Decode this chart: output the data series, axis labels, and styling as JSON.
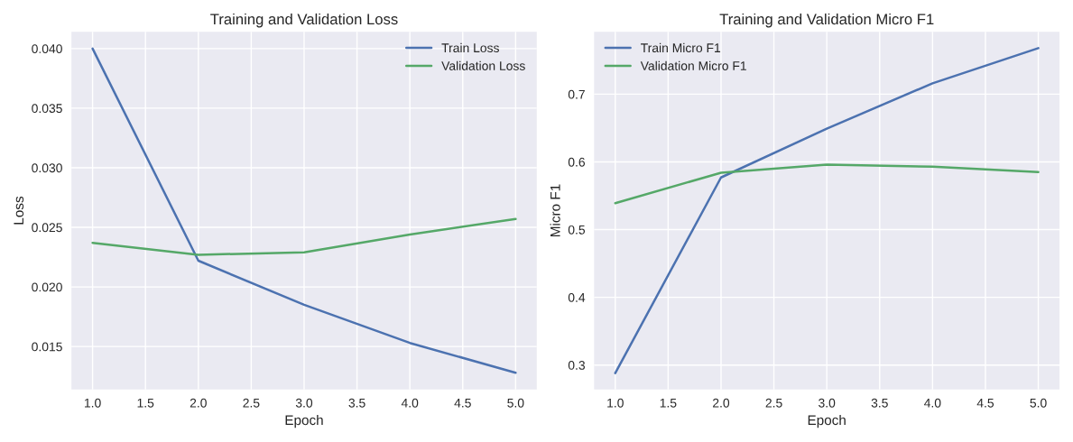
{
  "chart_data": [
    {
      "type": "line",
      "title": "Training and Validation Loss",
      "xlabel": "Epoch",
      "ylabel": "Loss",
      "x": [
        1,
        2,
        3,
        4,
        5
      ],
      "series": [
        {
          "name": "Train Loss",
          "color": "#4c72b0",
          "values": [
            0.04,
            0.0222,
            0.0185,
            0.0153,
            0.0128
          ]
        },
        {
          "name": "Validation Loss",
          "color": "#55a868",
          "values": [
            0.0237,
            0.0227,
            0.0229,
            0.0244,
            0.0257
          ]
        }
      ],
      "xlim": [
        0.8,
        5.2
      ],
      "ylim": [
        0.0114,
        0.0414
      ],
      "xticks": [
        {
          "value": 1,
          "label": "1.0"
        },
        {
          "value": 1.5,
          "label": "1.5"
        },
        {
          "value": 2,
          "label": "2.0"
        },
        {
          "value": 2.5,
          "label": "2.5"
        },
        {
          "value": 3,
          "label": "3.0"
        },
        {
          "value": 3.5,
          "label": "3.5"
        },
        {
          "value": 4,
          "label": "4.0"
        },
        {
          "value": 4.5,
          "label": "4.5"
        },
        {
          "value": 5,
          "label": "5.0"
        }
      ],
      "yticks": [
        {
          "value": 0.015,
          "label": "0.015"
        },
        {
          "value": 0.02,
          "label": "0.020"
        },
        {
          "value": 0.025,
          "label": "0.025"
        },
        {
          "value": 0.03,
          "label": "0.030"
        },
        {
          "value": 0.035,
          "label": "0.035"
        },
        {
          "value": 0.04,
          "label": "0.040"
        }
      ],
      "grid": true,
      "legend": "top right",
      "marker": "none",
      "line_style": "solid"
    },
    {
      "type": "line",
      "title": "Training and Validation Micro F1",
      "xlabel": "Epoch",
      "ylabel": "Micro F1",
      "x": [
        1,
        2,
        3,
        4,
        5
      ],
      "series": [
        {
          "name": "Train Micro F1",
          "color": "#4c72b0",
          "values": [
            0.288,
            0.577,
            0.649,
            0.716,
            0.768
          ]
        },
        {
          "name": "Validation Micro F1",
          "color": "#55a868",
          "values": [
            0.539,
            0.584,
            0.596,
            0.593,
            0.585
          ]
        }
      ],
      "xlim": [
        0.8,
        5.2
      ],
      "ylim": [
        0.264,
        0.792
      ],
      "xticks": [
        {
          "value": 1,
          "label": "1.0"
        },
        {
          "value": 1.5,
          "label": "1.5"
        },
        {
          "value": 2,
          "label": "2.0"
        },
        {
          "value": 2.5,
          "label": "2.5"
        },
        {
          "value": 3,
          "label": "3.0"
        },
        {
          "value": 3.5,
          "label": "3.5"
        },
        {
          "value": 4,
          "label": "4.0"
        },
        {
          "value": 4.5,
          "label": "4.5"
        },
        {
          "value": 5,
          "label": "5.0"
        }
      ],
      "yticks": [
        0.3,
        0.4,
        0.5,
        0.6,
        0.7
      ],
      "grid": true,
      "legend": "top left",
      "marker": "none",
      "line_style": "solid"
    }
  ]
}
